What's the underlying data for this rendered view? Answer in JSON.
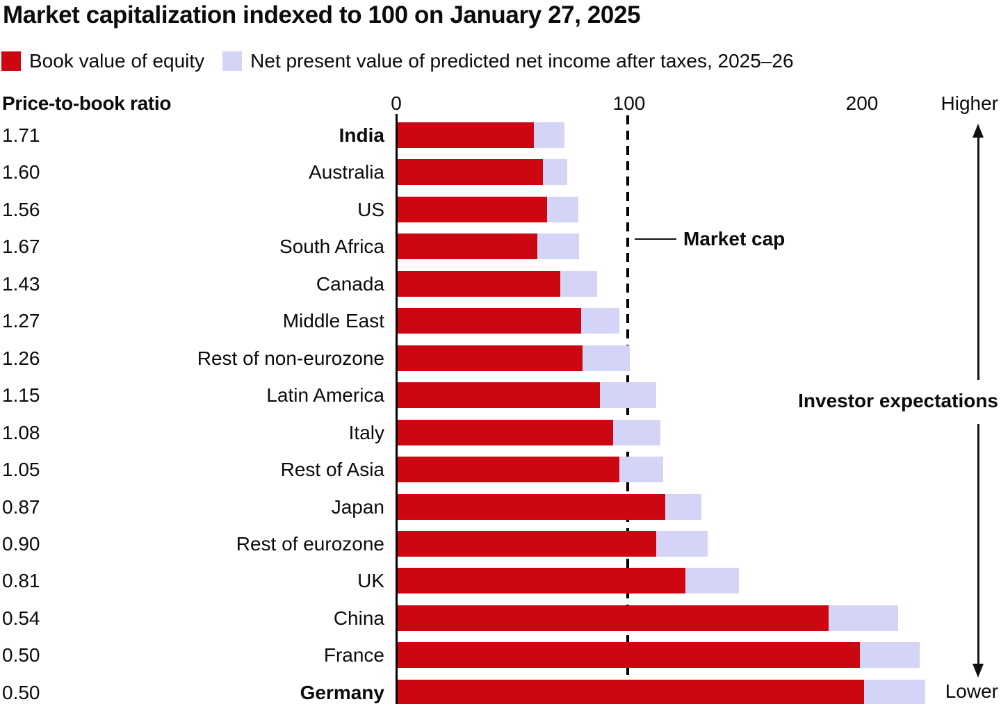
{
  "title": "Market capitalization indexed to 100 on January 27, 2025",
  "legend": {
    "items": [
      {
        "label": "Book value of equity",
        "color": "#CC0711"
      },
      {
        "label": "Net present value of predicted net income after taxes, 2025–26",
        "color": "#D4D4F6"
      }
    ]
  },
  "left_column_header": "Price-to-book ratio",
  "axis": {
    "tick_labels": [
      "0",
      "100",
      "200"
    ],
    "higher_label": "Higher",
    "lower_label": "Lower"
  },
  "annotations": {
    "market_cap": "Market cap",
    "investor_expectations": "Investor expectations"
  },
  "colors": {
    "book_value": "#CC0711",
    "npv": "#D4D4F6",
    "text": "#0B0B0B"
  },
  "chart_data": {
    "type": "bar",
    "orientation": "horizontal",
    "stacked": true,
    "title": "Market capitalization indexed to 100 on January 27, 2025",
    "x_axis": {
      "min": 0,
      "ticks": [
        0,
        100,
        200
      ],
      "visible_max": 260,
      "higher_end": "Higher",
      "lower_end": "Lower"
    },
    "reference_line": {
      "value": 100,
      "label": "Market cap",
      "style": "dashed"
    },
    "series": [
      "Book value of equity",
      "Net present value of predicted net income after taxes, 2025–26"
    ],
    "legend_position": "top",
    "grid": false,
    "rows": [
      {
        "label": "India",
        "price_to_book": "1.71",
        "book_value": 58.5,
        "npv": 13.1,
        "total": 71.6,
        "emphasis": true
      },
      {
        "label": "Australia",
        "price_to_book": "1.60",
        "book_value": 62.5,
        "npv": 10.3,
        "total": 72.8,
        "emphasis": false
      },
      {
        "label": "US",
        "price_to_book": "1.56",
        "book_value": 64.1,
        "npv": 13.5,
        "total": 77.6,
        "emphasis": false
      },
      {
        "label": "South Africa",
        "price_to_book": "1.67",
        "book_value": 59.9,
        "npv": 18.0,
        "total": 77.9,
        "emphasis": false
      },
      {
        "label": "Canada",
        "price_to_book": "1.43",
        "book_value": 69.9,
        "npv": 15.9,
        "total": 85.8,
        "emphasis": false
      },
      {
        "label": "Middle East",
        "price_to_book": "1.27",
        "book_value": 78.7,
        "npv": 16.5,
        "total": 95.2,
        "emphasis": false
      },
      {
        "label": "Rest of non-eurozone",
        "price_to_book": "1.26",
        "book_value": 79.4,
        "npv": 20.3,
        "total": 99.7,
        "emphasis": false
      },
      {
        "label": "Latin America",
        "price_to_book": "1.15",
        "book_value": 87.0,
        "npv": 24.1,
        "total": 111.1,
        "emphasis": false
      },
      {
        "label": "Italy",
        "price_to_book": "1.08",
        "book_value": 92.6,
        "npv": 20.3,
        "total": 112.9,
        "emphasis": false
      },
      {
        "label": "Rest of Asia",
        "price_to_book": "1.05",
        "book_value": 95.2,
        "npv": 18.9,
        "total": 114.1,
        "emphasis": false
      },
      {
        "label": "Japan",
        "price_to_book": "0.87",
        "book_value": 114.9,
        "npv": 15.6,
        "total": 130.5,
        "emphasis": false
      },
      {
        "label": "Rest of eurozone",
        "price_to_book": "0.90",
        "book_value": 111.1,
        "npv": 22.1,
        "total": 133.2,
        "emphasis": false
      },
      {
        "label": "UK",
        "price_to_book": "0.81",
        "book_value": 123.5,
        "npv": 23.1,
        "total": 146.6,
        "emphasis": false
      },
      {
        "label": "China",
        "price_to_book": "0.54",
        "book_value": 185.2,
        "npv": 29.8,
        "total": 215.0,
        "emphasis": false
      },
      {
        "label": "France",
        "price_to_book": "0.50",
        "book_value": 198.5,
        "npv": 25.6,
        "total": 224.1,
        "emphasis": false
      },
      {
        "label": "Germany",
        "price_to_book": "0.50",
        "book_value": 200.3,
        "npv": 26.4,
        "total": 226.7,
        "emphasis": true
      }
    ]
  }
}
